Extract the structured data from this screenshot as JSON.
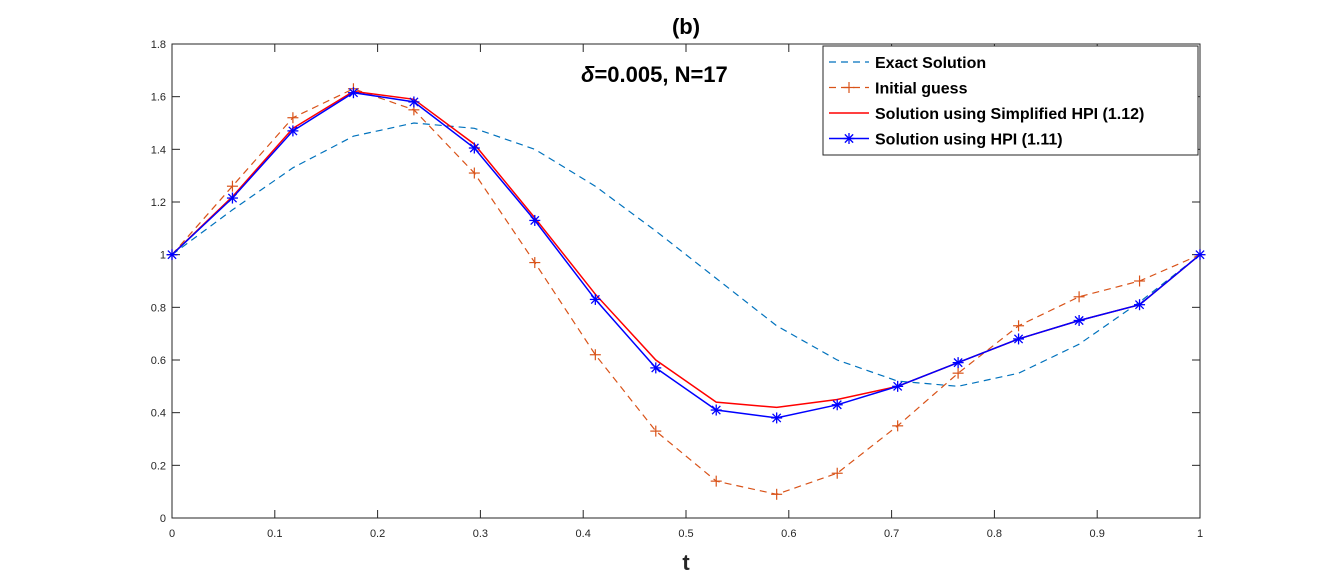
{
  "chart_data": {
    "type": "line",
    "title": "(b)",
    "xlabel": "t",
    "ylabel": "",
    "xlim": [
      0,
      1
    ],
    "ylim": [
      0,
      1.8
    ],
    "grid": false,
    "legend_position": "top-right",
    "annotation": {
      "symbol": "δ",
      "text": "=0.005, N=17"
    },
    "x_ticks": [
      "0",
      "0.1",
      "0.2",
      "0.3",
      "0.4",
      "0.5",
      "0.6",
      "0.7",
      "0.8",
      "0.9",
      "1"
    ],
    "y_ticks": [
      "0",
      "0.2",
      "0.4",
      "0.6",
      "0.8",
      "1",
      "1.2",
      "1.4",
      "1.6",
      "1.8"
    ],
    "x": [
      0,
      0.0588,
      0.1176,
      0.1765,
      0.2353,
      0.2941,
      0.3529,
      0.4118,
      0.4706,
      0.5294,
      0.5882,
      0.6471,
      0.7059,
      0.7647,
      0.8235,
      0.8824,
      0.9412,
      1
    ],
    "series": [
      {
        "name": "Exact Solution",
        "style": "dashed",
        "marker": "none",
        "color": "#0072BD",
        "values": [
          1.0,
          1.17,
          1.33,
          1.45,
          1.5,
          1.48,
          1.4,
          1.26,
          1.09,
          0.91,
          0.73,
          0.6,
          0.52,
          0.5,
          0.55,
          0.66,
          0.82,
          1.0
        ]
      },
      {
        "name": "Initial guess",
        "style": "dashed",
        "marker": "plus",
        "color": "#D95319",
        "values": [
          1.0,
          1.26,
          1.52,
          1.63,
          1.55,
          1.31,
          0.97,
          0.62,
          0.33,
          0.14,
          0.09,
          0.17,
          0.35,
          0.55,
          0.73,
          0.84,
          0.9,
          1.0
        ]
      },
      {
        "name": "Solution using Simplified HPI (1.12)",
        "style": "solid",
        "marker": "none",
        "color": "#FF0000",
        "values": [
          1.0,
          1.22,
          1.48,
          1.62,
          1.59,
          1.42,
          1.14,
          0.85,
          0.6,
          0.44,
          0.42,
          0.45,
          0.5,
          0.59,
          0.68,
          0.75,
          0.81,
          1.0
        ]
      },
      {
        "name": "Solution using HPI (1.11)",
        "style": "solid",
        "marker": "asterisk",
        "color": "#0000FF",
        "values": [
          1.0,
          1.215,
          1.47,
          1.615,
          1.58,
          1.405,
          1.13,
          0.83,
          0.57,
          0.41,
          0.38,
          0.43,
          0.5,
          0.59,
          0.68,
          0.75,
          0.81,
          1.0
        ]
      }
    ]
  }
}
